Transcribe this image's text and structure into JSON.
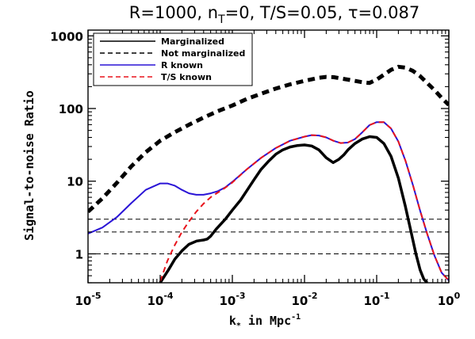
{
  "chart_data": {
    "type": "line",
    "title_parts": [
      "R=1000, n",
      "T",
      "=0, T/S=0.05, τ=0.087"
    ],
    "xlabel_parts": [
      "k",
      "*",
      " in Mpc",
      "-1"
    ],
    "ylabel": "Signal-to-noise Ratio",
    "x_scale": "log",
    "y_scale": "log",
    "xlim": [
      1e-05,
      1
    ],
    "ylim": [
      0.4,
      1200
    ],
    "x_ticks": [
      {
        "value": 1e-05,
        "base": "10",
        "exp": "-5"
      },
      {
        "value": 0.0001,
        "base": "10",
        "exp": "-4"
      },
      {
        "value": 0.001,
        "base": "10",
        "exp": "-3"
      },
      {
        "value": 0.01,
        "base": "10",
        "exp": "-2"
      },
      {
        "value": 0.1,
        "base": "10",
        "exp": "-1"
      },
      {
        "value": 1,
        "base": "10",
        "exp": "0"
      }
    ],
    "y_ticks": [
      {
        "value": 1,
        "label": "1"
      },
      {
        "value": 10,
        "label": "10"
      },
      {
        "value": 100,
        "label": "100"
      },
      {
        "value": 1000,
        "label": "1000"
      }
    ],
    "reference_lines": [
      1,
      2,
      3
    ],
    "reference_color": "#000000",
    "legend_position": "top-left",
    "series": [
      {
        "name": "Marginalized",
        "color": "#000000",
        "dash": "solid",
        "width": 3.5,
        "legend_width": 1.5,
        "x": [
          0.0001,
          0.00013,
          0.00016,
          0.0002,
          0.00025,
          0.00032,
          0.0004,
          0.00045,
          0.0005,
          0.0006,
          0.0008,
          0.001,
          0.0013,
          0.0016,
          0.002,
          0.0025,
          0.0032,
          0.004,
          0.005,
          0.0063,
          0.008,
          0.01,
          0.0126,
          0.0158,
          0.02,
          0.025,
          0.03,
          0.035,
          0.04,
          0.05,
          0.063,
          0.08,
          0.1,
          0.126,
          0.158,
          0.2,
          0.25,
          0.3,
          0.35,
          0.4,
          0.45,
          0.5
        ],
        "y": [
          0.4,
          0.6,
          0.85,
          1.1,
          1.35,
          1.5,
          1.55,
          1.6,
          1.75,
          2.2,
          3.0,
          4.0,
          5.5,
          7.5,
          10.5,
          14.5,
          19,
          23.5,
          27,
          29.5,
          31,
          31.5,
          30.5,
          27,
          21,
          18,
          20,
          23,
          27,
          33,
          38,
          41,
          40,
          33,
          22,
          11,
          4.5,
          2.0,
          1.0,
          0.6,
          0.45,
          0.4
        ]
      },
      {
        "name": "Not marginalized",
        "color": "#000000",
        "dash": "dashed",
        "width": 5,
        "legend_width": 1.5,
        "x": [
          1e-05,
          1.58e-05,
          2.51e-05,
          3.98e-05,
          6.31e-05,
          0.0001,
          0.000158,
          0.000251,
          0.000398,
          0.000631,
          0.001,
          0.00158,
          0.00251,
          0.00398,
          0.00631,
          0.01,
          0.0158,
          0.02,
          0.0251,
          0.0398,
          0.0631,
          0.0794,
          0.1,
          0.158,
          0.2,
          0.251,
          0.316,
          0.398,
          0.5,
          0.631,
          0.794,
          1.0
        ],
        "y": [
          3.8,
          5.8,
          9.5,
          16,
          25,
          36,
          47,
          60,
          75,
          92,
          110,
          135,
          160,
          188,
          215,
          240,
          265,
          272,
          270,
          250,
          230,
          225,
          250,
          340,
          375,
          365,
          330,
          280,
          225,
          180,
          140,
          112
        ]
      },
      {
        "name": "R known",
        "color": "#2a14d6",
        "dash": "solid",
        "width": 2,
        "legend_width": 1.5,
        "x": [
          1e-05,
          1.58e-05,
          2.51e-05,
          3.98e-05,
          6.31e-05,
          0.0001,
          0.000126,
          0.000158,
          0.0002,
          0.000251,
          0.000316,
          0.000398,
          0.0005,
          0.000631,
          0.000794,
          0.001,
          0.00158,
          0.00251,
          0.00398,
          0.00631,
          0.01,
          0.0126,
          0.0158,
          0.02,
          0.0251,
          0.0316,
          0.0398,
          0.05,
          0.0631,
          0.0794,
          0.1,
          0.126,
          0.158,
          0.2,
          0.251,
          0.316,
          0.398,
          0.5,
          0.631,
          0.794,
          1.0
        ],
        "y": [
          1.9,
          2.3,
          3.2,
          5.0,
          7.6,
          9.3,
          9.3,
          8.7,
          7.6,
          6.8,
          6.5,
          6.5,
          6.8,
          7.3,
          8.2,
          9.8,
          14.5,
          21,
          28.5,
          36,
          41,
          43,
          42.5,
          40,
          36,
          33.5,
          34,
          38,
          47,
          59,
          65,
          65,
          53,
          35,
          19,
          9,
          4,
          1.9,
          0.95,
          0.55,
          0.43
        ]
      },
      {
        "name": "T/S known",
        "color": "#e8141c",
        "dash": "dashed",
        "width": 2,
        "legend_width": 1.5,
        "x": [
          0.0001,
          0.000126,
          0.000158,
          0.0002,
          0.000251,
          0.000316,
          0.000398,
          0.0005,
          0.000631,
          0.000794,
          0.001,
          0.00158,
          0.00251,
          0.00398,
          0.00631,
          0.01,
          0.0126,
          0.0158,
          0.02,
          0.0251,
          0.0316,
          0.0398,
          0.05,
          0.0631,
          0.0794,
          0.1,
          0.126,
          0.158,
          0.2,
          0.251,
          0.316,
          0.398,
          0.5,
          0.631,
          0.794,
          1.0
        ],
        "y": [
          0.42,
          0.8,
          1.3,
          2.0,
          2.8,
          3.8,
          4.9,
          6.0,
          7.0,
          8.1,
          9.6,
          14.5,
          21,
          28.5,
          36,
          41,
          43,
          42.5,
          40,
          36,
          33.5,
          34,
          38,
          47,
          59,
          65,
          65,
          53,
          35,
          19,
          9,
          4,
          1.9,
          0.95,
          0.55,
          0.43
        ]
      }
    ]
  }
}
